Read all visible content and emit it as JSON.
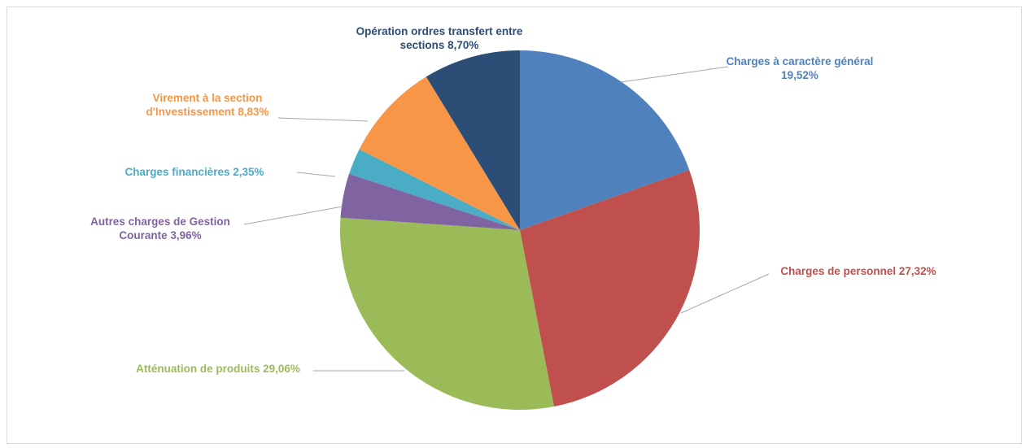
{
  "chart_data": {
    "type": "pie",
    "title": "",
    "start_angle_deg": 0,
    "direction": "clockwise",
    "slices": [
      {
        "name": "Charges à caractère général",
        "value": 19.52,
        "label_lines": [
          "Charges à caractère général",
          "19,52%"
        ],
        "color": "#4f81bd"
      },
      {
        "name": "Charges de personnel",
        "value": 27.32,
        "label_lines": [
          "Charges de personnel 27,32%"
        ],
        "color": "#c0504d"
      },
      {
        "name": "Atténuation de produits",
        "value": 29.06,
        "label_lines": [
          "Atténuation de produits 29,06%"
        ],
        "color": "#9bbb59"
      },
      {
        "name": "Autres charges de Gestion Courante",
        "value": 3.96,
        "label_lines": [
          "Autres charges de Gestion",
          "Courante 3,96%"
        ],
        "color": "#8064a2"
      },
      {
        "name": "Charges financières",
        "value": 2.35,
        "label_lines": [
          "Charges financières 2,35%"
        ],
        "color": "#4bacc6"
      },
      {
        "name": "Virement à la section d'Investissement",
        "value": 8.83,
        "label_lines": [
          "Virement à la section",
          "d'Investissement 8,83%"
        ],
        "color": "#f79646"
      },
      {
        "name": "Opération ordres transfert entre sections",
        "value": 8.7,
        "label_lines": [
          "Opération ordres transfert entre",
          "sections 8,70%"
        ],
        "color": "#2c4d75"
      }
    ]
  }
}
